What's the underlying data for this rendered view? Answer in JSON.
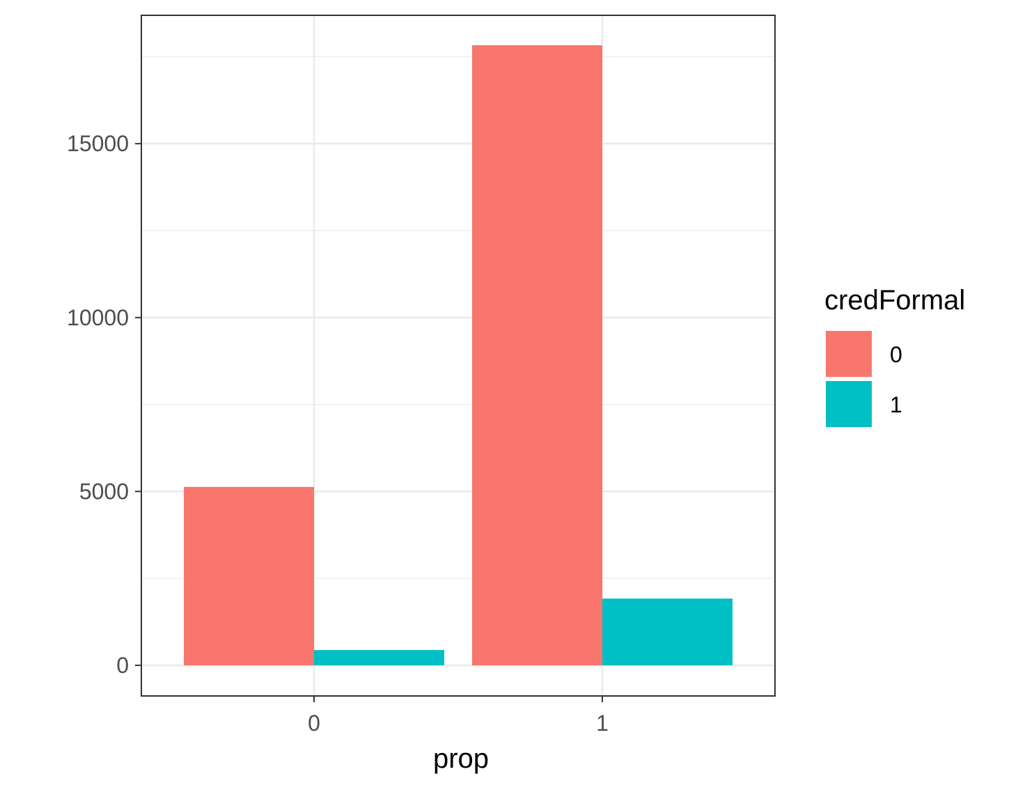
{
  "chart_data": {
    "type": "bar",
    "categories": [
      "0",
      "1"
    ],
    "series": [
      {
        "name": "0",
        "values": [
          5130,
          17830
        ],
        "color": "#F8766D"
      },
      {
        "name": "1",
        "values": [
          440,
          1920
        ],
        "color": "#00BFC4"
      }
    ],
    "xlabel": "prop",
    "ylabel": "",
    "ylim": [
      -880,
      18690
    ],
    "yticks": [
      0,
      5000,
      10000,
      15000
    ],
    "ytick_labels": [
      "0",
      "5000",
      "10000",
      "15000"
    ],
    "grid": true,
    "legend": {
      "title": "credFormal",
      "placement": "right",
      "entries": [
        "0",
        "1"
      ]
    }
  }
}
